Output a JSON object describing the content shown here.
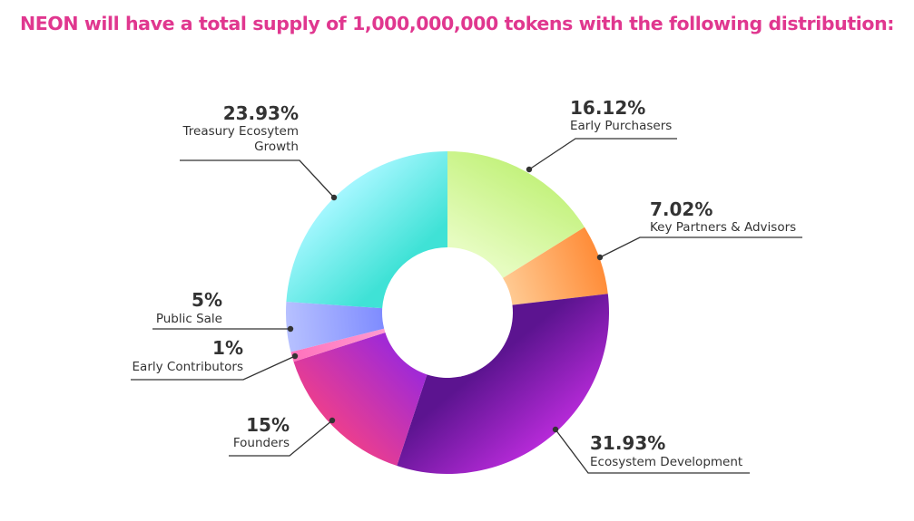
{
  "page": {
    "title": "NEON will have a total supply of 1,000,000,000 tokens with the following distribution:",
    "title_color": "#e0378f"
  },
  "chart_data": {
    "type": "pie",
    "variant": "donut",
    "total_supply": "1,000,000,000",
    "slices": [
      {
        "name": "Early Purchasers",
        "value": 16.12,
        "label_pct": "16.12%",
        "label_lines": [
          "Early Purchasers"
        ],
        "colors": [
          "#c4f27e",
          "#e6fcc0"
        ]
      },
      {
        "name": "Key Partners & Advisors",
        "value": 7.02,
        "label_pct": "7.02%",
        "label_lines": [
          "Key Partners & Advisors"
        ],
        "colors": [
          "#ff8c38",
          "#ffc991"
        ]
      },
      {
        "name": "Ecosystem Development",
        "value": 31.93,
        "label_pct": "31.93%",
        "label_lines": [
          "Ecosystem Development"
        ],
        "colors": [
          "#b62ad8",
          "#5c1490"
        ]
      },
      {
        "name": "Founders",
        "value": 15,
        "label_pct": "15%",
        "label_lines": [
          "Founders"
        ],
        "colors": [
          "#ec3e8e",
          "#a22ad4"
        ]
      },
      {
        "name": "Early Contributors",
        "value": 1,
        "label_pct": "1%",
        "label_lines": [
          "Early Contributors"
        ],
        "colors": [
          "#ff72bc",
          "#ff9ad0"
        ]
      },
      {
        "name": "Public Sale",
        "value": 5,
        "label_pct": "5%",
        "label_lines": [
          "Public Sale"
        ],
        "colors": [
          "#b7c1ff",
          "#7f8cff"
        ]
      },
      {
        "name": "Treasury Ecosytem Growth",
        "value": 23.93,
        "label_pct": "23.93%",
        "label_lines": [
          "Treasury Ecosytem",
          "Growth"
        ],
        "colors": [
          "#a5f7ff",
          "#3fe2d6"
        ]
      }
    ],
    "legend": "none",
    "label_color": "#333333"
  }
}
